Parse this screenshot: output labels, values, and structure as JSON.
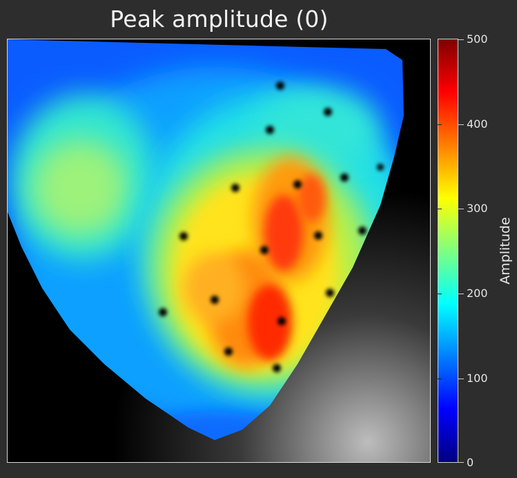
{
  "figure": {
    "title": "Peak amplitude (0)"
  },
  "colorbar": {
    "label": "Amplitude",
    "ticks": [
      "0",
      "100",
      "200",
      "300",
      "400",
      "500"
    ],
    "range": [
      0,
      500
    ],
    "colormap": "jet"
  },
  "image": {
    "description_type": "optical mapping heatmap of heart with electrode dots"
  }
}
